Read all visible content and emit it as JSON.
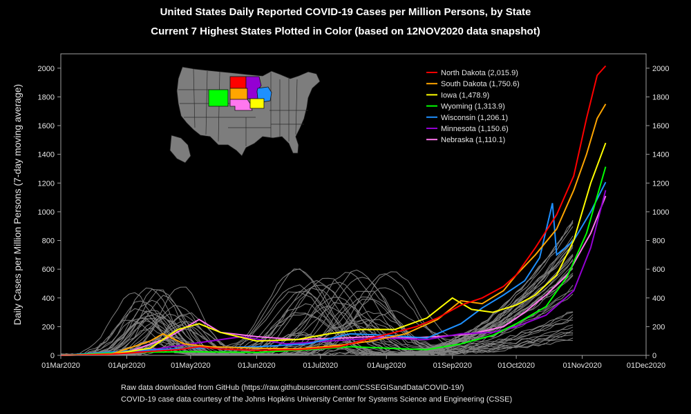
{
  "chart_data": {
    "type": "line",
    "title": "United States Daily Reported COVID-19 Cases per Million Persons, by State",
    "subtitle": "Current 7 Highest States Plotted in Color (based on 12NOV2020 data snapshot)",
    "ylabel": "Daily Cases per Million Persons (7-day moving average)",
    "xlabel": "",
    "ylim": [
      0,
      2100
    ],
    "xlim": [
      "2020-03-01",
      "2020-12-01"
    ],
    "x_ticks": [
      "01Mar2020",
      "01Apr2020",
      "01May2020",
      "01Jun2020",
      "01Jul2020",
      "01Aug2020",
      "01Sep2020",
      "01Oct2020",
      "01Nov2020",
      "01Dec2020"
    ],
    "y_ticks": [
      "0",
      "200",
      "400",
      "600",
      "800",
      "1000",
      "1200",
      "1400",
      "1600",
      "1800",
      "2000"
    ],
    "legend_position": "top-right",
    "grid": false,
    "series": [
      {
        "name": "North Dakota (2,015.9)",
        "color": "#ff0000",
        "points": [
          [
            "2020-03-01",
            0
          ],
          [
            "2020-03-25",
            8
          ],
          [
            "2020-04-10",
            25
          ],
          [
            "2020-04-25",
            40
          ],
          [
            "2020-05-05",
            60
          ],
          [
            "2020-05-15",
            45
          ],
          [
            "2020-06-01",
            35
          ],
          [
            "2020-06-20",
            40
          ],
          [
            "2020-07-10",
            60
          ],
          [
            "2020-07-25",
            120
          ],
          [
            "2020-08-05",
            160
          ],
          [
            "2020-08-15",
            200
          ],
          [
            "2020-08-25",
            260
          ],
          [
            "2020-09-05",
            350
          ],
          [
            "2020-09-15",
            400
          ],
          [
            "2020-09-25",
            480
          ],
          [
            "2020-10-01",
            560
          ],
          [
            "2020-10-10",
            750
          ],
          [
            "2020-10-20",
            980
          ],
          [
            "2020-10-28",
            1250
          ],
          [
            "2020-11-03",
            1650
          ],
          [
            "2020-11-08",
            1950
          ],
          [
            "2020-11-12",
            2015.9
          ]
        ]
      },
      {
        "name": "South Dakota (1,750.6)",
        "color": "#ffa500",
        "points": [
          [
            "2020-03-01",
            0
          ],
          [
            "2020-03-25",
            10
          ],
          [
            "2020-04-12",
            100
          ],
          [
            "2020-04-18",
            150
          ],
          [
            "2020-04-28",
            80
          ],
          [
            "2020-05-10",
            60
          ],
          [
            "2020-06-01",
            50
          ],
          [
            "2020-06-20",
            45
          ],
          [
            "2020-07-10",
            70
          ],
          [
            "2020-07-25",
            100
          ],
          [
            "2020-08-10",
            150
          ],
          [
            "2020-08-25",
            250
          ],
          [
            "2020-09-05",
            380
          ],
          [
            "2020-09-15",
            360
          ],
          [
            "2020-09-25",
            450
          ],
          [
            "2020-10-01",
            560
          ],
          [
            "2020-10-10",
            700
          ],
          [
            "2020-10-20",
            880
          ],
          [
            "2020-10-28",
            1150
          ],
          [
            "2020-11-03",
            1400
          ],
          [
            "2020-11-08",
            1650
          ],
          [
            "2020-11-12",
            1750.6
          ]
        ]
      },
      {
        "name": "Iowa (1,478.9)",
        "color": "#ffff00",
        "points": [
          [
            "2020-03-01",
            0
          ],
          [
            "2020-03-25",
            8
          ],
          [
            "2020-04-12",
            50
          ],
          [
            "2020-04-25",
            180
          ],
          [
            "2020-05-05",
            220
          ],
          [
            "2020-05-15",
            160
          ],
          [
            "2020-06-01",
            100
          ],
          [
            "2020-06-20",
            110
          ],
          [
            "2020-07-05",
            150
          ],
          [
            "2020-07-20",
            180
          ],
          [
            "2020-08-05",
            180
          ],
          [
            "2020-08-20",
            260
          ],
          [
            "2020-09-01",
            400
          ],
          [
            "2020-09-10",
            320
          ],
          [
            "2020-09-20",
            300
          ],
          [
            "2020-10-01",
            350
          ],
          [
            "2020-10-10",
            420
          ],
          [
            "2020-10-20",
            560
          ],
          [
            "2020-10-28",
            800
          ],
          [
            "2020-11-05",
            1200
          ],
          [
            "2020-11-12",
            1478.9
          ]
        ]
      },
      {
        "name": "Wyoming (1,313.9)",
        "color": "#00ff00",
        "points": [
          [
            "2020-03-01",
            0
          ],
          [
            "2020-04-01",
            20
          ],
          [
            "2020-05-01",
            25
          ],
          [
            "2020-06-01",
            20
          ],
          [
            "2020-06-25",
            40
          ],
          [
            "2020-07-15",
            60
          ],
          [
            "2020-08-01",
            50
          ],
          [
            "2020-08-20",
            40
          ],
          [
            "2020-09-05",
            80
          ],
          [
            "2020-09-20",
            140
          ],
          [
            "2020-10-01",
            220
          ],
          [
            "2020-10-15",
            340
          ],
          [
            "2020-10-25",
            550
          ],
          [
            "2020-11-03",
            850
          ],
          [
            "2020-11-12",
            1313.9
          ]
        ]
      },
      {
        "name": "Wisconsin (1,206.1)",
        "color": "#1e90ff",
        "points": [
          [
            "2020-03-01",
            0
          ],
          [
            "2020-04-01",
            30
          ],
          [
            "2020-05-01",
            50
          ],
          [
            "2020-06-01",
            60
          ],
          [
            "2020-06-25",
            80
          ],
          [
            "2020-07-15",
            150
          ],
          [
            "2020-08-01",
            140
          ],
          [
            "2020-08-20",
            120
          ],
          [
            "2020-09-05",
            220
          ],
          [
            "2020-09-15",
            330
          ],
          [
            "2020-09-25",
            420
          ],
          [
            "2020-10-05",
            520
          ],
          [
            "2020-10-12",
            680
          ],
          [
            "2020-10-18",
            1060
          ],
          [
            "2020-10-20",
            700
          ],
          [
            "2020-10-28",
            800
          ],
          [
            "2020-11-05",
            1000
          ],
          [
            "2020-11-12",
            1206.1
          ]
        ]
      },
      {
        "name": "Minnesota (1,150.6)",
        "color": "#9400d3",
        "points": [
          [
            "2020-03-01",
            0
          ],
          [
            "2020-04-01",
            15
          ],
          [
            "2020-05-01",
            80
          ],
          [
            "2020-05-25",
            130
          ],
          [
            "2020-06-15",
            80
          ],
          [
            "2020-07-15",
            110
          ],
          [
            "2020-08-01",
            120
          ],
          [
            "2020-08-20",
            110
          ],
          [
            "2020-09-05",
            150
          ],
          [
            "2020-09-20",
            160
          ],
          [
            "2020-10-01",
            200
          ],
          [
            "2020-10-15",
            280
          ],
          [
            "2020-10-28",
            450
          ],
          [
            "2020-11-05",
            750
          ],
          [
            "2020-11-12",
            1150.6
          ]
        ]
      },
      {
        "name": "Nebraska (1,110.1)",
        "color": "#ff77ee",
        "points": [
          [
            "2020-03-01",
            0
          ],
          [
            "2020-04-01",
            20
          ],
          [
            "2020-04-20",
            120
          ],
          [
            "2020-05-05",
            250
          ],
          [
            "2020-05-15",
            160
          ],
          [
            "2020-06-01",
            130
          ],
          [
            "2020-06-20",
            110
          ],
          [
            "2020-07-10",
            120
          ],
          [
            "2020-07-25",
            130
          ],
          [
            "2020-08-10",
            120
          ],
          [
            "2020-08-25",
            130
          ],
          [
            "2020-09-10",
            150
          ],
          [
            "2020-09-25",
            200
          ],
          [
            "2020-10-05",
            300
          ],
          [
            "2020-10-15",
            420
          ],
          [
            "2020-10-25",
            560
          ],
          [
            "2020-11-05",
            850
          ],
          [
            "2020-11-12",
            1110.1
          ]
        ]
      }
    ]
  },
  "footer": {
    "line1": "Raw data downloaded from GitHub (https://raw.githubusercontent.com/CSSEGISandData/COVID-19/)",
    "line2": "COVID-19 case data courtesy of the Johns Hopkins University Center for Systems Science and Engineering (CSSE)"
  },
  "colors": {
    "background": "#000000",
    "other_states": "#808080",
    "axis": "#a0a0a0",
    "map_fill": "#777777"
  },
  "icons": {
    "inset_map": "us-map-icon"
  }
}
